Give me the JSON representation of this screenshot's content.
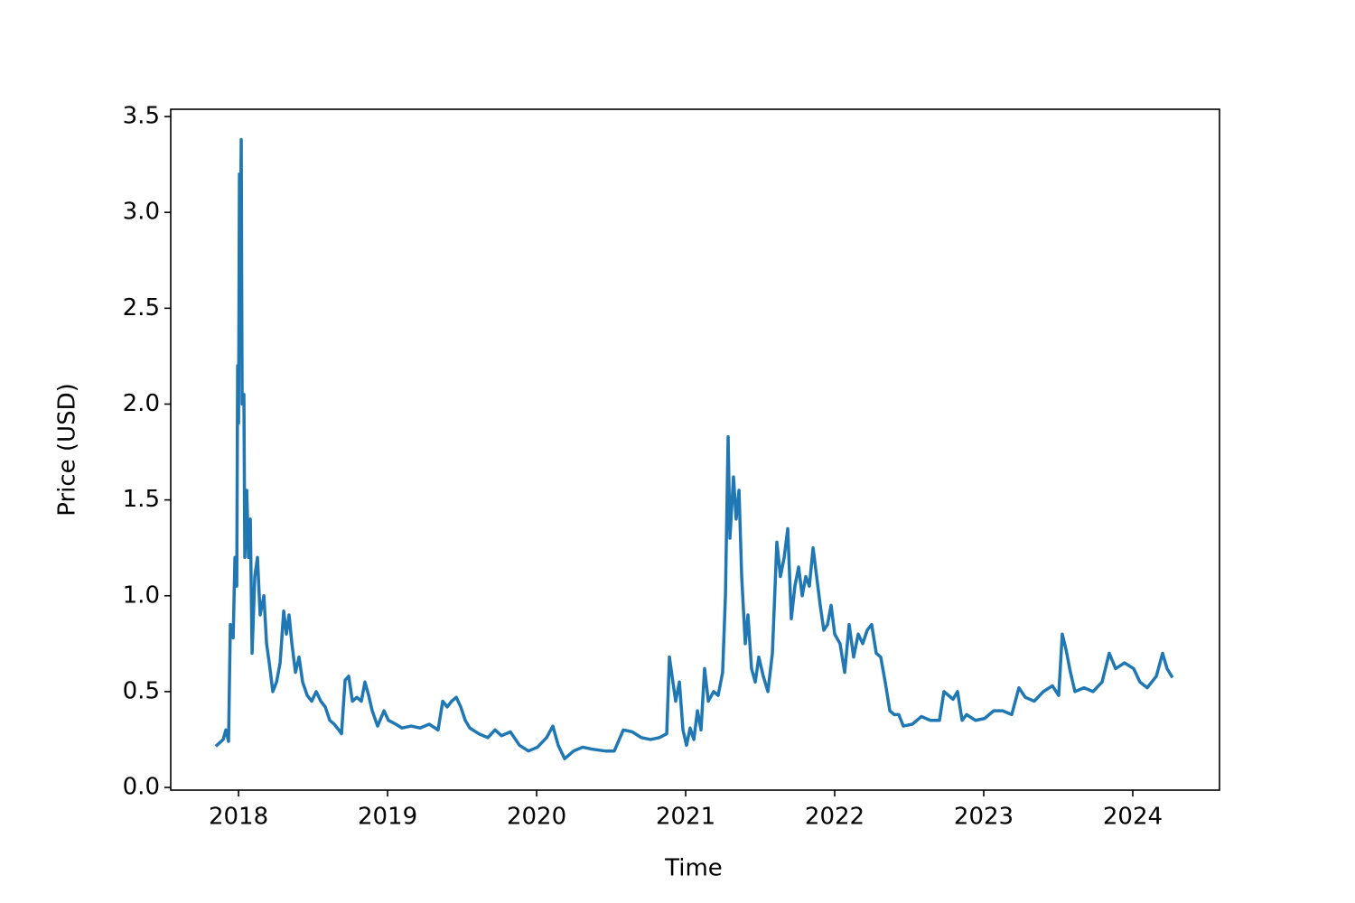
{
  "chart_data": {
    "type": "line",
    "xlabel": "Time",
    "ylabel": "Price (USD)",
    "color": "#1f77b4",
    "xlim": [
      2017.545,
      2024.582
    ],
    "xticks": [
      2018,
      2019,
      2020,
      2021,
      2022,
      2023,
      2024
    ],
    "ylim": [
      -0.014,
      3.538
    ],
    "yticks": [
      {
        "value": 0,
        "label": "0.0"
      },
      0.5,
      {
        "value": 1,
        "label": "1.0"
      },
      1.5,
      {
        "value": 2,
        "label": "2.0"
      },
      2.5,
      {
        "value": 3,
        "label": "3.0"
      },
      3.5
    ],
    "x": [
      2017.855,
      2017.897,
      2017.915,
      2017.933,
      2017.945,
      2017.964,
      2017.976,
      2017.988,
      2017.994,
      2018.0,
      2018.006,
      2018.012,
      2018.018,
      2018.024,
      2018.036,
      2018.042,
      2018.055,
      2018.067,
      2018.079,
      2018.091,
      2018.109,
      2018.127,
      2018.145,
      2018.17,
      2018.188,
      2018.206,
      2018.23,
      2018.255,
      2018.279,
      2018.303,
      2018.321,
      2018.339,
      2018.358,
      2018.382,
      2018.406,
      2018.43,
      2018.461,
      2018.491,
      2018.521,
      2018.552,
      2018.582,
      2018.612,
      2018.642,
      2018.673,
      2018.691,
      2018.715,
      2018.739,
      2018.764,
      2018.794,
      2018.824,
      2018.848,
      2018.873,
      2018.897,
      2018.933,
      2018.976,
      2019.006,
      2019.055,
      2019.097,
      2019.158,
      2019.218,
      2019.279,
      2019.339,
      2019.37,
      2019.4,
      2019.43,
      2019.461,
      2019.491,
      2019.521,
      2019.552,
      2019.612,
      2019.673,
      2019.721,
      2019.764,
      2019.824,
      2019.885,
      2019.945,
      2020.006,
      2020.067,
      2020.109,
      2020.145,
      2020.188,
      2020.248,
      2020.309,
      2020.37,
      2020.461,
      2020.521,
      2020.582,
      2020.642,
      2020.703,
      2020.764,
      2020.824,
      2020.873,
      2020.891,
      2020.909,
      2020.933,
      2020.958,
      2020.982,
      2021.006,
      2021.03,
      2021.055,
      2021.079,
      2021.103,
      2021.127,
      2021.152,
      2021.188,
      2021.218,
      2021.248,
      2021.267,
      2021.285,
      2021.297,
      2021.321,
      2021.339,
      2021.358,
      2021.376,
      2021.4,
      2021.418,
      2021.442,
      2021.467,
      2021.491,
      2021.521,
      2021.552,
      2021.582,
      2021.612,
      2021.636,
      2021.661,
      2021.685,
      2021.709,
      2021.733,
      2021.758,
      2021.782,
      2021.806,
      2021.83,
      2021.855,
      2021.879,
      2021.903,
      2021.927,
      2021.952,
      2021.976,
      2022.0,
      2022.036,
      2022.067,
      2022.097,
      2022.127,
      2022.158,
      2022.188,
      2022.218,
      2022.248,
      2022.279,
      2022.309,
      2022.339,
      2022.37,
      2022.4,
      2022.43,
      2022.461,
      2022.521,
      2022.582,
      2022.642,
      2022.703,
      2022.733,
      2022.764,
      2022.794,
      2022.824,
      2022.855,
      2022.885,
      2022.945,
      2023.006,
      2023.067,
      2023.127,
      2023.188,
      2023.236,
      2023.279,
      2023.339,
      2023.4,
      2023.461,
      2023.503,
      2023.527,
      2023.552,
      2023.582,
      2023.612,
      2023.673,
      2023.733,
      2023.794,
      2023.842,
      2023.885,
      2023.945,
      2024.006,
      2024.048,
      2024.097,
      2024.158,
      2024.2,
      2024.23,
      2024.261
    ],
    "values": [
      0.22,
      0.25,
      0.3,
      0.24,
      0.85,
      0.78,
      1.2,
      1.05,
      2.2,
      1.9,
      3.2,
      2.8,
      3.38,
      2.0,
      2.05,
      1.2,
      1.55,
      1.2,
      1.4,
      0.7,
      1.1,
      1.2,
      0.9,
      1.0,
      0.75,
      0.65,
      0.5,
      0.55,
      0.65,
      0.92,
      0.8,
      0.9,
      0.75,
      0.6,
      0.68,
      0.55,
      0.48,
      0.45,
      0.5,
      0.45,
      0.42,
      0.35,
      0.33,
      0.3,
      0.28,
      0.56,
      0.58,
      0.45,
      0.47,
      0.45,
      0.55,
      0.48,
      0.4,
      0.32,
      0.4,
      0.35,
      0.33,
      0.31,
      0.32,
      0.31,
      0.33,
      0.3,
      0.45,
      0.42,
      0.45,
      0.47,
      0.42,
      0.35,
      0.31,
      0.28,
      0.26,
      0.3,
      0.27,
      0.29,
      0.22,
      0.19,
      0.21,
      0.26,
      0.32,
      0.22,
      0.15,
      0.19,
      0.21,
      0.2,
      0.19,
      0.19,
      0.3,
      0.29,
      0.26,
      0.25,
      0.26,
      0.28,
      0.68,
      0.58,
      0.45,
      0.55,
      0.3,
      0.22,
      0.31,
      0.25,
      0.4,
      0.3,
      0.62,
      0.45,
      0.5,
      0.48,
      0.6,
      1.0,
      1.83,
      1.3,
      1.62,
      1.4,
      1.55,
      1.1,
      0.75,
      0.9,
      0.62,
      0.55,
      0.68,
      0.58,
      0.5,
      0.7,
      1.28,
      1.1,
      1.2,
      1.35,
      0.88,
      1.05,
      1.15,
      1.0,
      1.1,
      1.05,
      1.25,
      1.1,
      0.95,
      0.82,
      0.85,
      0.95,
      0.8,
      0.75,
      0.6,
      0.85,
      0.68,
      0.8,
      0.75,
      0.82,
      0.85,
      0.7,
      0.68,
      0.55,
      0.4,
      0.38,
      0.38,
      0.32,
      0.33,
      0.37,
      0.35,
      0.35,
      0.5,
      0.48,
      0.46,
      0.5,
      0.35,
      0.38,
      0.35,
      0.36,
      0.4,
      0.4,
      0.38,
      0.52,
      0.47,
      0.45,
      0.5,
      0.53,
      0.48,
      0.8,
      0.72,
      0.6,
      0.5,
      0.52,
      0.5,
      0.55,
      0.7,
      0.62,
      0.65,
      0.62,
      0.55,
      0.52,
      0.58,
      0.7,
      0.62,
      0.58
    ]
  }
}
